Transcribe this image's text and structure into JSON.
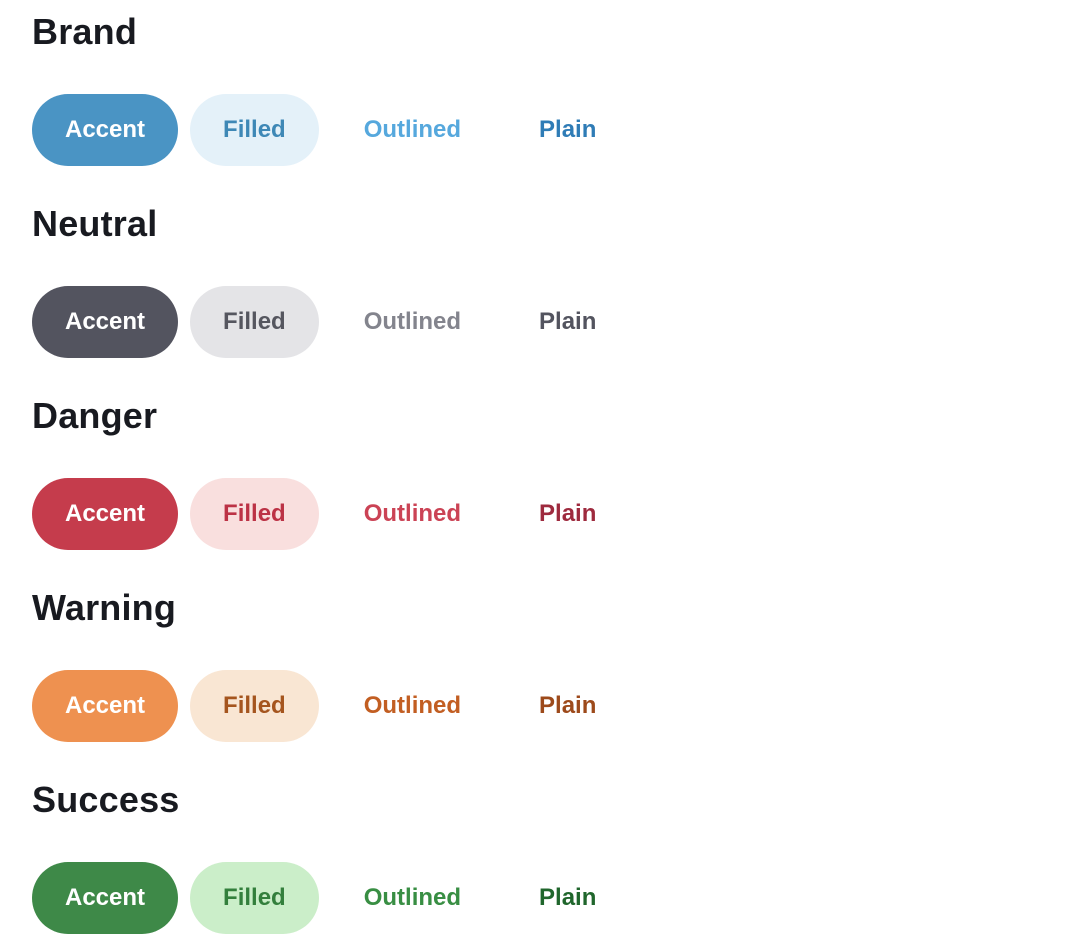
{
  "page": {
    "background": "#ffffff",
    "heading_color": "#181a20"
  },
  "sections": [
    {
      "id": "brand",
      "title": "Brand",
      "buttons": [
        {
          "label": "Accent",
          "variant": "accent",
          "bg": "#4a94c4",
          "fg": "#ffffff"
        },
        {
          "label": "Filled",
          "variant": "filled",
          "bg": "#e4f1f9",
          "fg": "#3e88b6"
        },
        {
          "label": "Outlined",
          "variant": "outlined",
          "bg": "transparent",
          "fg": "#56a8dd"
        },
        {
          "label": "Plain",
          "variant": "plain",
          "bg": "transparent",
          "fg": "#2f7cb6"
        }
      ]
    },
    {
      "id": "neutral",
      "title": "Neutral",
      "buttons": [
        {
          "label": "Accent",
          "variant": "accent",
          "bg": "#53545f",
          "fg": "#ffffff"
        },
        {
          "label": "Filled",
          "variant": "filled",
          "bg": "#e4e4e7",
          "fg": "#55565f"
        },
        {
          "label": "Outlined",
          "variant": "outlined",
          "bg": "transparent",
          "fg": "#83848d"
        },
        {
          "label": "Plain",
          "variant": "plain",
          "bg": "transparent",
          "fg": "#53545f"
        }
      ]
    },
    {
      "id": "danger",
      "title": "Danger",
      "buttons": [
        {
          "label": "Accent",
          "variant": "accent",
          "bg": "#c53c4c",
          "fg": "#ffffff"
        },
        {
          "label": "Filled",
          "variant": "filled",
          "bg": "#f9dfde",
          "fg": "#bc3245"
        },
        {
          "label": "Outlined",
          "variant": "outlined",
          "bg": "transparent",
          "fg": "#cb4355"
        },
        {
          "label": "Plain",
          "variant": "plain",
          "bg": "transparent",
          "fg": "#9e2a3e"
        }
      ]
    },
    {
      "id": "warning",
      "title": "Warning",
      "buttons": [
        {
          "label": "Accent",
          "variant": "accent",
          "bg": "#ee9150",
          "fg": "#ffffff"
        },
        {
          "label": "Filled",
          "variant": "filled",
          "bg": "#f9e6d3",
          "fg": "#a5551e"
        },
        {
          "label": "Outlined",
          "variant": "outlined",
          "bg": "transparent",
          "fg": "#c25e22"
        },
        {
          "label": "Plain",
          "variant": "plain",
          "bg": "transparent",
          "fg": "#9d4a1b"
        }
      ]
    },
    {
      "id": "success",
      "title": "Success",
      "buttons": [
        {
          "label": "Accent",
          "variant": "accent",
          "bg": "#3e8948",
          "fg": "#ffffff"
        },
        {
          "label": "Filled",
          "variant": "filled",
          "bg": "#cbeec9",
          "fg": "#337f3c"
        },
        {
          "label": "Outlined",
          "variant": "outlined",
          "bg": "transparent",
          "fg": "#388e43"
        },
        {
          "label": "Plain",
          "variant": "plain",
          "bg": "transparent",
          "fg": "#20662c"
        }
      ]
    }
  ]
}
